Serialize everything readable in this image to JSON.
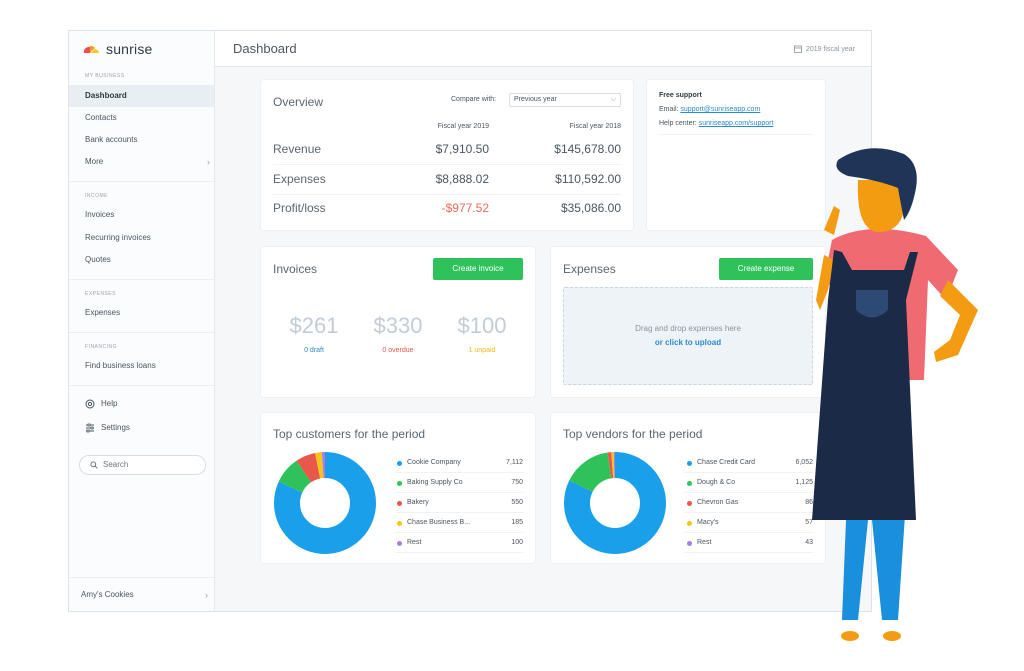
{
  "brand": {
    "name": "sunrise"
  },
  "sidebar": {
    "sections": [
      {
        "label": "MY BUSINESS",
        "items": [
          {
            "label": "Dashboard",
            "active": true
          },
          {
            "label": "Contacts"
          },
          {
            "label": "Bank accounts"
          },
          {
            "label": "More",
            "chevron": true
          }
        ]
      },
      {
        "label": "INCOME",
        "items": [
          {
            "label": "Invoices"
          },
          {
            "label": "Recurring invoices"
          },
          {
            "label": "Quotes"
          }
        ]
      },
      {
        "label": "EXPENSES",
        "items": [
          {
            "label": "Expenses"
          }
        ]
      },
      {
        "label": "FINANCING",
        "items": [
          {
            "label": "Find business loans"
          }
        ]
      }
    ],
    "help_label": "Help",
    "settings_label": "Settings",
    "search_placeholder": "Search",
    "account_label": "Amy's Cookies"
  },
  "header": {
    "title": "Dashboard",
    "fiscal_label": "2019 fiscal year"
  },
  "overview": {
    "title": "Overview",
    "compare_label": "Compare with:",
    "compare_value": "Previous year",
    "col1": "Fiscal year 2019",
    "col2": "Fiscal year 2018",
    "rows": [
      {
        "label": "Revenue",
        "v1": "$7,910.50",
        "v2": "$145,678.00"
      },
      {
        "label": "Expenses",
        "v1": "$8,888.02",
        "v2": "$110,592.00"
      },
      {
        "label": "Profit/loss",
        "v1": "-$977.52",
        "v2": "$35,086.00"
      }
    ]
  },
  "support": {
    "title": "Free support",
    "email_label": "Email:",
    "email": "support@sunriseapp.com",
    "help_label": "Help center:",
    "help_link": "sunriseapp.com/support"
  },
  "invoices": {
    "title": "Invoices",
    "button": "Create invoice",
    "amounts": [
      {
        "value": "$261",
        "label": "0 draft",
        "color": "#2b8ad4"
      },
      {
        "value": "$330",
        "label": "0 overdue",
        "color": "#e8574a"
      },
      {
        "value": "$100",
        "label": "1 unpaid",
        "color": "#f5b81a"
      }
    ]
  },
  "expenses": {
    "title": "Expenses",
    "button": "Create expense",
    "drop_text": "Drag and drop expenses here",
    "upload_text": "or click to upload"
  },
  "top_customers": {
    "title": "Top customers for the period",
    "items": [
      {
        "name": "Cookie Company",
        "value": "7,112",
        "color": "#1a9fea"
      },
      {
        "name": "Baking Supply Co",
        "value": "750",
        "color": "#2fc25b"
      },
      {
        "name": "Bakery",
        "value": "550",
        "color": "#e8574a"
      },
      {
        "name": "Chase Business B...",
        "value": "185",
        "color": "#f5c518"
      },
      {
        "name": "Rest",
        "value": "100",
        "color": "#a77ce8"
      }
    ]
  },
  "top_vendors": {
    "title": "Top vendors for the period",
    "items": [
      {
        "name": "Chase Credit Card",
        "value": "6,052",
        "color": "#1a9fea"
      },
      {
        "name": "Dough & Co",
        "value": "1,125",
        "color": "#2fc25b"
      },
      {
        "name": "Chevron Gas",
        "value": "86",
        "color": "#e8574a"
      },
      {
        "name": "Macy's",
        "value": "57",
        "color": "#f5c518"
      },
      {
        "name": "Rest",
        "value": "43",
        "color": "#a77ce8"
      }
    ]
  },
  "colors": {
    "accent_green": "#2fc25b",
    "link_blue": "#2b8ad4",
    "negative_red": "#e8574a"
  }
}
